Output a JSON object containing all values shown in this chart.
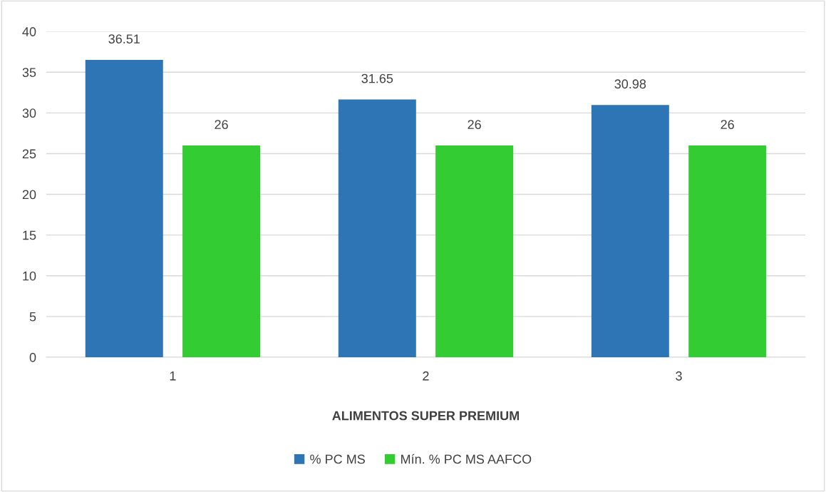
{
  "chart_data": {
    "type": "bar",
    "xlabel": "ALIMENTOS SUPER PREMIUM",
    "categories": [
      "1",
      "2",
      "3"
    ],
    "series": [
      {
        "name": "% PC MS",
        "color": "#2e75b6",
        "values": [
          36.51,
          31.65,
          30.98
        ]
      },
      {
        "name": "Mín. % PC MS AAFCO",
        "color": "#33cc33",
        "values": [
          26,
          26,
          26
        ]
      }
    ],
    "ylim": [
      0,
      40
    ],
    "yticks": [
      0,
      5,
      10,
      15,
      20,
      25,
      30,
      35,
      40
    ],
    "grid": "y",
    "legend": "bottom",
    "data_labels": true
  }
}
